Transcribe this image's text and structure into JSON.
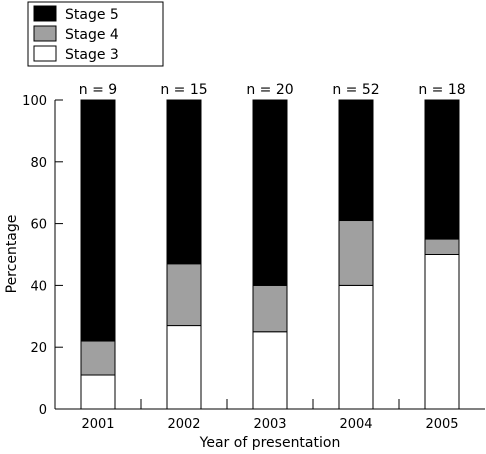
{
  "chart_data": {
    "type": "bar",
    "stacked": true,
    "categories": [
      "2001",
      "2002",
      "2003",
      "2004",
      "2005"
    ],
    "bar_annotations": [
      "n = 9",
      "n = 15",
      "n = 20",
      "n = 52",
      "n = 18"
    ],
    "series": [
      {
        "name": "Stage 3",
        "values": [
          11,
          27,
          25,
          40,
          50
        ],
        "color": "#ffffff"
      },
      {
        "name": "Stage 4",
        "values": [
          11,
          20,
          15,
          21,
          5
        ],
        "color": "#a0a0a0"
      },
      {
        "name": "Stage 5",
        "values": [
          78,
          53,
          60,
          39,
          45
        ],
        "color": "#000000"
      }
    ],
    "legend": {
      "placement": "top-left",
      "order": [
        "Stage 5",
        "Stage 4",
        "Stage 3"
      ]
    },
    "xlabel": "Year of presentation",
    "ylabel": "Percentage",
    "ylim": [
      0,
      100
    ],
    "yticks": [
      0,
      20,
      40,
      60,
      80,
      100
    ],
    "grid": false
  }
}
